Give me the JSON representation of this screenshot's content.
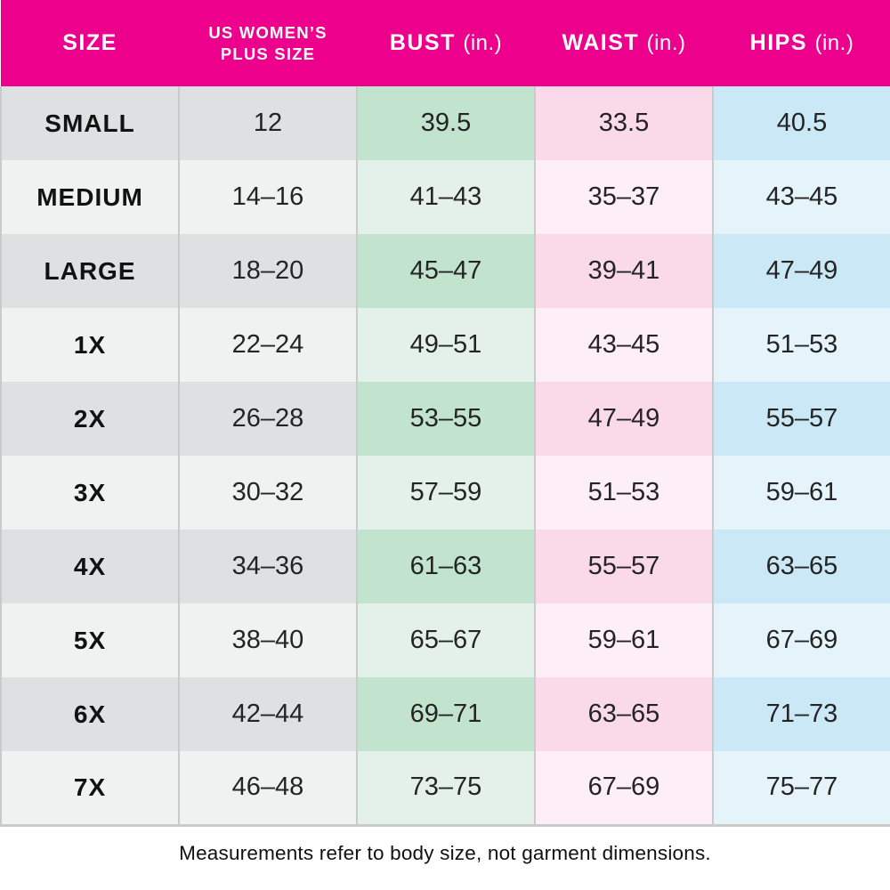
{
  "colors": {
    "header_bg": "#ec008c",
    "header_text": "#ffffff",
    "gray_dark": "#dfe0e1",
    "gray_light": "#f0f1f1",
    "green_dark": "#c2e4cf",
    "green_light": "#e3f1ea",
    "pink_dark": "#fadae8",
    "pink_light": "#fdeff5",
    "blue_dark": "#cbe8f6",
    "blue_light": "#e5f3fa",
    "divider": "#c9caca",
    "body_text": "#242424"
  },
  "table": {
    "header": {
      "size": "SIZE",
      "plus_line1": "US WOMEN’S",
      "plus_line2": "PLUS SIZE",
      "bust": "BUST",
      "waist": "WAIST",
      "hips": "HIPS",
      "unit": "(in.)"
    },
    "rows": [
      {
        "size": "SMALL",
        "plus": "12",
        "bust": "39.5",
        "waist": "33.5",
        "hips": "40.5"
      },
      {
        "size": "MEDIUM",
        "plus": "14–16",
        "bust": "41–43",
        "waist": "35–37",
        "hips": "43–45"
      },
      {
        "size": "LARGE",
        "plus": "18–20",
        "bust": "45–47",
        "waist": "39–41",
        "hips": "47–49"
      },
      {
        "size": "1X",
        "plus": "22–24",
        "bust": "49–51",
        "waist": "43–45",
        "hips": "51–53"
      },
      {
        "size": "2X",
        "plus": "26–28",
        "bust": "53–55",
        "waist": "47–49",
        "hips": "55–57"
      },
      {
        "size": "3X",
        "plus": "30–32",
        "bust": "57–59",
        "waist": "51–53",
        "hips": "59–61"
      },
      {
        "size": "4X",
        "plus": "34–36",
        "bust": "61–63",
        "waist": "55–57",
        "hips": "63–65"
      },
      {
        "size": "5X",
        "plus": "38–40",
        "bust": "65–67",
        "waist": "59–61",
        "hips": "67–69"
      },
      {
        "size": "6X",
        "plus": "42–44",
        "bust": "69–71",
        "waist": "63–65",
        "hips": "71–73"
      },
      {
        "size": "7X",
        "plus": "46–48",
        "bust": "73–75",
        "waist": "67–69",
        "hips": "75–77"
      }
    ],
    "footnote": "Measurements refer to body size, not garment dimensions."
  },
  "chart_data": {
    "type": "table",
    "title": "US Women's Plus Size Chart",
    "columns": [
      "SIZE",
      "US WOMEN'S PLUS SIZE",
      "BUST (in.)",
      "WAIST (in.)",
      "HIPS (in.)"
    ],
    "rows": [
      [
        "SMALL",
        "12",
        "39.5",
        "33.5",
        "40.5"
      ],
      [
        "MEDIUM",
        "14–16",
        "41–43",
        "35–37",
        "43–45"
      ],
      [
        "LARGE",
        "18–20",
        "45–47",
        "39–41",
        "47–49"
      ],
      [
        "1X",
        "22–24",
        "49–51",
        "43–45",
        "51–53"
      ],
      [
        "2X",
        "26–28",
        "53–55",
        "47–49",
        "55–57"
      ],
      [
        "3X",
        "30–32",
        "57–59",
        "51–53",
        "59–61"
      ],
      [
        "4X",
        "34–36",
        "61–63",
        "55–57",
        "63–65"
      ],
      [
        "5X",
        "38–40",
        "65–67",
        "59–61",
        "67–69"
      ],
      [
        "6X",
        "42–44",
        "69–71",
        "63–65",
        "71–73"
      ],
      [
        "7X",
        "46–48",
        "73–75",
        "67–69",
        "75–77"
      ]
    ],
    "footnote": "Measurements refer to body size, not garment dimensions.",
    "layout": {
      "striped_rows": true,
      "tinted_columns": [
        "gray",
        "gray",
        "green",
        "pink",
        "blue"
      ]
    }
  }
}
